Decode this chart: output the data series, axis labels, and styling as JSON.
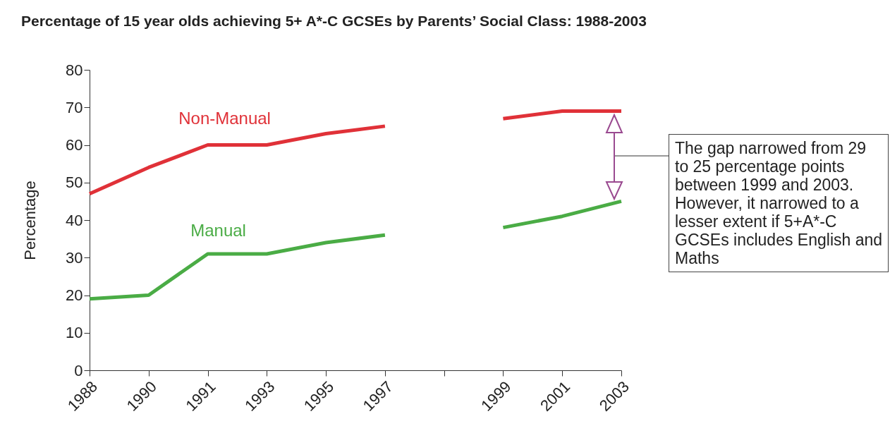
{
  "chart_data": {
    "type": "line",
    "title": "Percentage of 15 year olds achieving 5+ A*-C GCSEs by Parents’ Social Class: 1988-2003",
    "ylabel": "Percentage",
    "categories": [
      "1988",
      "1990",
      "1991",
      "1993",
      "1995",
      "1997",
      null,
      "1999",
      "2001",
      "2003"
    ],
    "series": [
      {
        "name": "Non-Manual",
        "color": "#e03138",
        "values": [
          47,
          54,
          60,
          60,
          63,
          65,
          null,
          67,
          69,
          69
        ]
      },
      {
        "name": "Manual",
        "color": "#4aac45",
        "values": [
          19,
          20,
          31,
          31,
          34,
          36,
          null,
          38,
          41,
          45
        ]
      }
    ],
    "ylim": [
      0,
      80
    ],
    "yticks": [
      0,
      10,
      20,
      30,
      40,
      50,
      60,
      70,
      80
    ],
    "grid": false,
    "line_style": "solid",
    "annotations": [
      "The gap narrowed from 29 to 25 percentage points between 1999 and 2003. However, it narrowed to a lesser extent if 5+A*-C GCSEs includes English and Maths"
    ]
  }
}
